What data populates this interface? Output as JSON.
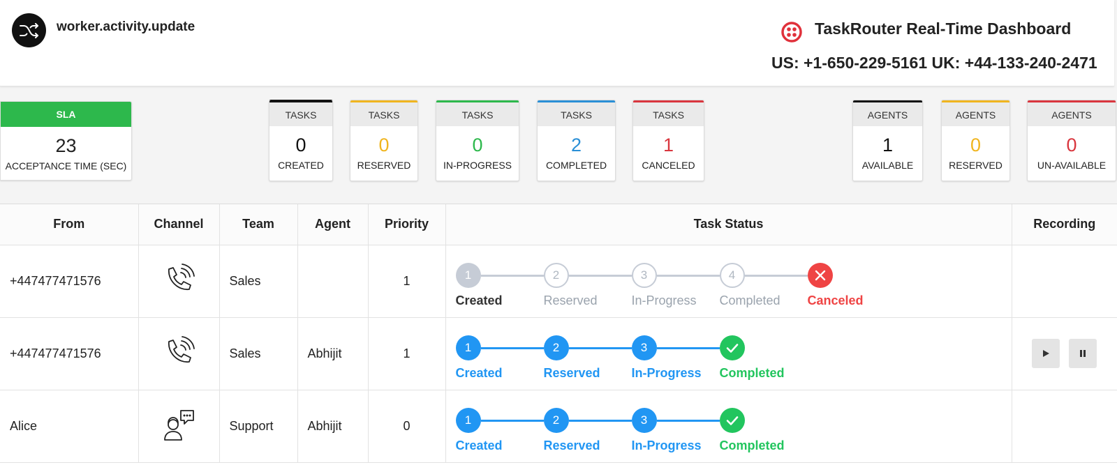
{
  "header": {
    "event_name": "worker.activity.update",
    "title": "TaskRouter Real-Time Dashboard",
    "phones": "US: +1-650-229-5161 UK: +44-133-240-2471",
    "logo_icon": "shuffle-icon",
    "brand_icon": "twilio-logo-icon"
  },
  "sla": {
    "head": "SLA",
    "value": "23",
    "label": "ACCEPTANCE TIME (SEC)",
    "color": "#2db84c"
  },
  "tasks": [
    {
      "head": "TASKS",
      "value": "0",
      "label": "CREATED",
      "color": "#111111"
    },
    {
      "head": "TASKS",
      "value": "0",
      "label": "RESERVED",
      "color": "#f0b51f"
    },
    {
      "head": "TASKS",
      "value": "0",
      "label": "IN-PROGRESS",
      "color": "#2db84c"
    },
    {
      "head": "TASKS",
      "value": "2",
      "label": "COMPLETED",
      "color": "#2a8fd6"
    },
    {
      "head": "TASKS",
      "value": "1",
      "label": "CANCELED",
      "color": "#d9363e"
    }
  ],
  "agents": [
    {
      "head": "AGENTS",
      "value": "1",
      "label": "AVAILABLE",
      "color": "#111111"
    },
    {
      "head": "AGENTS",
      "value": "0",
      "label": "RESERVED",
      "color": "#f0b51f"
    },
    {
      "head": "AGENTS",
      "value": "0",
      "label": "UN-AVAILABLE",
      "color": "#d9363e"
    }
  ],
  "table": {
    "columns": [
      "From",
      "Channel",
      "Team",
      "Agent",
      "Priority",
      "Task Status",
      "Recording"
    ],
    "rows": [
      {
        "from": "+447477471576",
        "channel_icon": "phone-call-icon",
        "team": "Sales",
        "agent": "",
        "priority": "1",
        "steps": [
          {
            "num": "1",
            "label": "Created",
            "state": "done-gray"
          },
          {
            "num": "2",
            "label": "Reserved",
            "state": "pending"
          },
          {
            "num": "3",
            "label": "In-Progress",
            "state": "pending"
          },
          {
            "num": "4",
            "label": "Completed",
            "state": "pending"
          },
          {
            "num": "",
            "label": "Canceled",
            "state": "canceled"
          }
        ],
        "recording": false
      },
      {
        "from": "+447477471576",
        "channel_icon": "phone-call-icon",
        "team": "Sales",
        "agent": "Abhijit",
        "priority": "1",
        "steps": [
          {
            "num": "1",
            "label": "Created",
            "state": "active"
          },
          {
            "num": "2",
            "label": "Reserved",
            "state": "active"
          },
          {
            "num": "3",
            "label": "In-Progress",
            "state": "active"
          },
          {
            "num": "",
            "label": "Completed",
            "state": "completed"
          }
        ],
        "recording": true
      },
      {
        "from": "Alice",
        "channel_icon": "chat-agent-icon",
        "team": "Support",
        "agent": "Abhijit",
        "priority": "0",
        "steps": [
          {
            "num": "1",
            "label": "Created",
            "state": "active"
          },
          {
            "num": "2",
            "label": "Reserved",
            "state": "active"
          },
          {
            "num": "3",
            "label": "In-Progress",
            "state": "active"
          },
          {
            "num": "",
            "label": "Completed",
            "state": "completed"
          }
        ],
        "recording": false
      }
    ]
  },
  "colors": {
    "blue": "#2196f3",
    "green": "#22c55e",
    "red": "#ef4444",
    "gray": "#c6ccd6",
    "gray_text": "#9aa3ad"
  }
}
